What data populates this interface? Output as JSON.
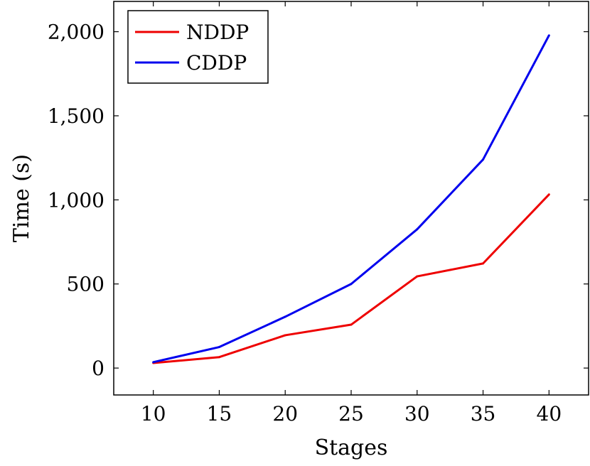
{
  "chart_data": {
    "type": "line",
    "title": "",
    "xlabel": "Stages",
    "ylabel": "Time (s)",
    "x": [
      10,
      15,
      20,
      25,
      30,
      35,
      40
    ],
    "xticks": [
      10,
      15,
      20,
      25,
      30,
      35,
      40
    ],
    "xtick_labels": [
      "10",
      "15",
      "20",
      "25",
      "30",
      "35",
      "40"
    ],
    "yticks": [
      0,
      500,
      1000,
      1500,
      2000
    ],
    "ytick_labels": [
      "0",
      "500",
      "1,000",
      "1,500",
      "2,000"
    ],
    "xlim": [
      7,
      43
    ],
    "ylim": [
      -160,
      2180
    ],
    "grid": false,
    "legend_position": "top-left",
    "series": [
      {
        "name": "NDDP",
        "color": "#ee0000",
        "values": [
          30,
          65,
          195,
          258,
          545,
          622,
          1032
        ]
      },
      {
        "name": "CDDP",
        "color": "#0000ee",
        "values": [
          35,
          125,
          305,
          500,
          825,
          1240,
          1978
        ]
      }
    ]
  }
}
